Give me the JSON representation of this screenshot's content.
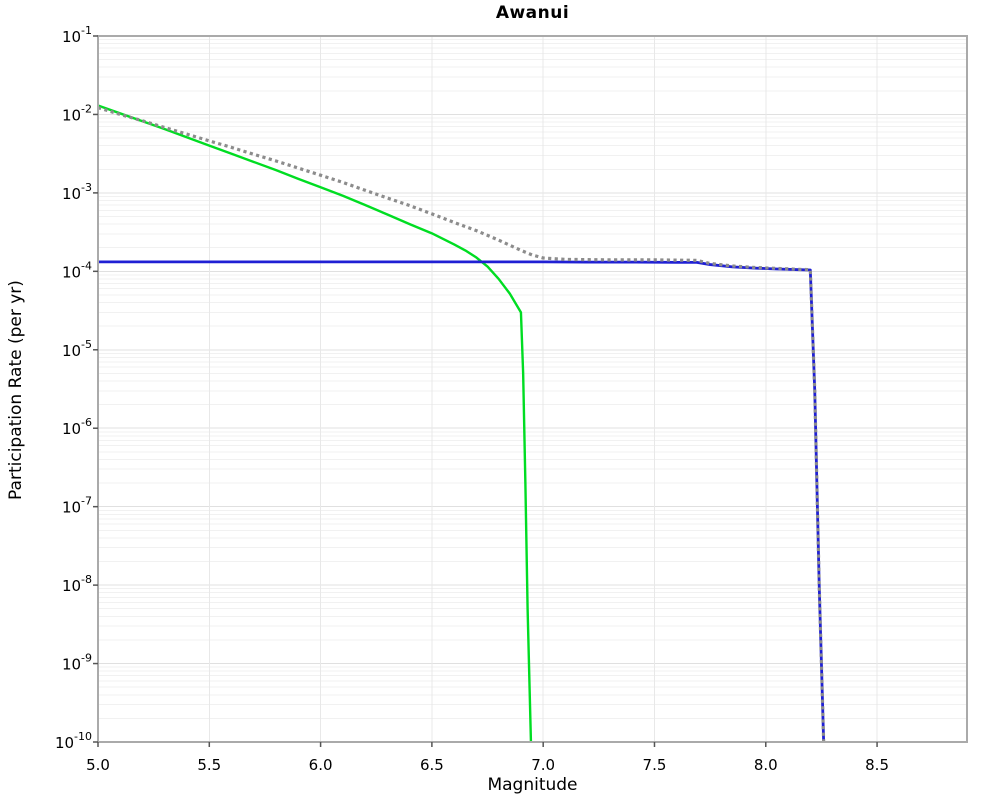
{
  "page": {
    "background_color": "#ffffff"
  },
  "chart_data": {
    "type": "line",
    "title": "Awanui",
    "xlabel": "Magnitude",
    "ylabel": "Participation Rate (per yr)",
    "xlim": [
      5.0,
      8.904
    ],
    "ylim": [
      1e-10,
      0.1
    ],
    "y_scale": "log10",
    "grid": true,
    "legend": "none",
    "x_ticks": [
      5.0,
      5.5,
      6.0,
      6.5,
      7.0,
      7.5,
      8.0,
      8.5
    ],
    "x_tick_labels": [
      "5.0",
      "5.5",
      "6.0",
      "6.5",
      "7.0",
      "7.5",
      "8.0",
      "8.5"
    ],
    "y_tick_exponents": [
      -1,
      -2,
      -3,
      -4,
      -5,
      -6,
      -7,
      -8,
      -9,
      -10
    ],
    "colors": {
      "green_series": "#00dd22",
      "blue_series": "#2020d4",
      "gray_series": "#8c8c8c",
      "frame": "#aaaaaa",
      "major_grid": "#e0e0e0",
      "minor_grid": "#f1f1f1",
      "vertical_grid": "#e8e8e8",
      "tick": "#555555"
    },
    "series": [
      {
        "name": "green-solid-curve",
        "style": "solid",
        "color_key": "green_series",
        "width": 2.4,
        "points": [
          [
            5.0,
            0.013
          ],
          [
            5.1,
            0.0103
          ],
          [
            5.2,
            0.0082
          ],
          [
            5.3,
            0.0065
          ],
          [
            5.4,
            0.0051
          ],
          [
            5.5,
            0.004
          ],
          [
            5.6,
            0.00315
          ],
          [
            5.7,
            0.00248
          ],
          [
            5.8,
            0.00195
          ],
          [
            5.9,
            0.00151
          ],
          [
            6.0,
            0.00118
          ],
          [
            6.1,
            0.00092
          ],
          [
            6.2,
            0.0007
          ],
          [
            6.3,
            0.00053
          ],
          [
            6.4,
            0.0004
          ],
          [
            6.5,
            0.000305
          ],
          [
            6.6,
            0.00022
          ],
          [
            6.65,
            0.000185
          ],
          [
            6.7,
            0.00015
          ],
          [
            6.75,
            0.000115
          ],
          [
            6.8,
            8e-05
          ],
          [
            6.85,
            5.2e-05
          ],
          [
            6.9,
            3e-05
          ],
          [
            6.91,
            5e-06
          ],
          [
            6.92,
            2e-07
          ],
          [
            6.93,
            5e-09
          ],
          [
            6.945,
            1e-10
          ]
        ]
      },
      {
        "name": "blue-solid-curve",
        "style": "solid",
        "color_key": "blue_series",
        "width": 2.8,
        "points": [
          [
            5.0,
            0.000132
          ],
          [
            7.0,
            0.000132
          ],
          [
            7.2,
            0.000131
          ],
          [
            7.4,
            0.000131
          ],
          [
            7.6,
            0.00013
          ],
          [
            7.69,
            0.00013
          ],
          [
            7.75,
            0.000122
          ],
          [
            7.85,
            0.000114
          ],
          [
            7.95,
            0.00011
          ],
          [
            8.05,
            0.000107
          ],
          [
            8.15,
            0.000105
          ],
          [
            8.2,
            0.000104
          ],
          [
            8.22,
            3e-06
          ],
          [
            8.24,
            1e-08
          ],
          [
            8.26,
            1e-10
          ]
        ]
      },
      {
        "name": "gray-dotted-curve",
        "style": "dotted",
        "color_key": "gray_series",
        "width": 3.2,
        "points": [
          [
            5.0,
            0.0122
          ],
          [
            5.1,
            0.01
          ],
          [
            5.2,
            0.0083
          ],
          [
            5.3,
            0.0068
          ],
          [
            5.4,
            0.0056
          ],
          [
            5.5,
            0.0046
          ],
          [
            5.6,
            0.0038
          ],
          [
            5.7,
            0.0031
          ],
          [
            5.8,
            0.00255
          ],
          [
            5.9,
            0.00207
          ],
          [
            6.0,
            0.00168
          ],
          [
            6.1,
            0.00136
          ],
          [
            6.2,
            0.00108
          ],
          [
            6.3,
            0.00086
          ],
          [
            6.4,
            0.00069
          ],
          [
            6.5,
            0.00054
          ],
          [
            6.6,
            0.00042
          ],
          [
            6.7,
            0.00033
          ],
          [
            6.8,
            0.00025
          ],
          [
            6.9,
            0.000185
          ],
          [
            6.95,
            0.000162
          ],
          [
            7.0,
            0.000148
          ],
          [
            7.1,
            0.000142
          ],
          [
            7.3,
            0.00014
          ],
          [
            7.5,
            0.00014
          ],
          [
            7.69,
            0.000138
          ],
          [
            7.75,
            0.000126
          ],
          [
            7.85,
            0.000117
          ],
          [
            7.95,
            0.000112
          ],
          [
            8.05,
            0.000109
          ],
          [
            8.15,
            0.000106
          ],
          [
            8.2,
            0.000105
          ],
          [
            8.22,
            3e-06
          ],
          [
            8.24,
            1e-08
          ],
          [
            8.26,
            1e-10
          ]
        ]
      }
    ]
  }
}
